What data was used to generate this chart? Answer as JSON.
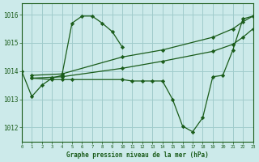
{
  "background_color": "#cceaea",
  "grid_color": "#a0cccc",
  "line_color": "#1a5c1a",
  "marker_color": "#1a5c1a",
  "xlabel": "Graphe pression niveau de la mer (hPa)",
  "xlabel_color": "#1a5c1a",
  "xlim": [
    0,
    23
  ],
  "ylim": [
    1011.5,
    1016.4
  ],
  "yticks": [
    1012,
    1013,
    1014,
    1015,
    1016
  ],
  "xticks": [
    0,
    1,
    2,
    3,
    4,
    5,
    6,
    7,
    8,
    9,
    10,
    11,
    12,
    13,
    14,
    15,
    16,
    17,
    18,
    19,
    20,
    21,
    22,
    23
  ],
  "series": [
    {
      "x": [
        0,
        1,
        2,
        3,
        4,
        5,
        6,
        7,
        8,
        9,
        10
      ],
      "y": [
        1014.0,
        1013.1,
        1013.5,
        1013.75,
        1013.85,
        1015.7,
        1015.95,
        1015.95,
        1015.7,
        1015.4,
        1014.85
      ]
    },
    {
      "comment": "diagonal line 1: from x=1 ~1013.9 to x=23 ~1016",
      "x": [
        1,
        4,
        10,
        14,
        19,
        21,
        22,
        23
      ],
      "y": [
        1013.85,
        1013.9,
        1014.5,
        1014.75,
        1015.2,
        1015.5,
        1015.75,
        1015.95
      ]
    },
    {
      "x": [
        1,
        4,
        10,
        14,
        19,
        21,
        22,
        23
      ],
      "y": [
        1013.75,
        1013.8,
        1014.1,
        1014.35,
        1014.7,
        1014.95,
        1015.2,
        1015.5
      ]
    },
    {
      "x": [
        1,
        3,
        4,
        5,
        10,
        11,
        12,
        13,
        14,
        15,
        16,
        17,
        18,
        19,
        20,
        21,
        22,
        23
      ],
      "y": [
        1013.75,
        1013.7,
        1013.7,
        1013.7,
        1013.7,
        1013.65,
        1013.65,
        1013.65,
        1013.65,
        1013.0,
        1012.05,
        1011.85,
        1012.35,
        1013.8,
        1013.85,
        1014.75,
        1015.85,
        1015.95
      ]
    }
  ]
}
